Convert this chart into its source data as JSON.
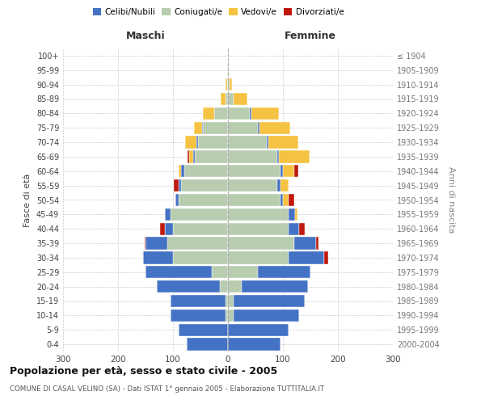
{
  "age_groups": [
    "0-4",
    "5-9",
    "10-14",
    "15-19",
    "20-24",
    "25-29",
    "30-34",
    "35-39",
    "40-44",
    "45-49",
    "50-54",
    "55-59",
    "60-64",
    "65-69",
    "70-74",
    "75-79",
    "80-84",
    "85-89",
    "90-94",
    "95-99",
    "100+"
  ],
  "birth_years": [
    "2000-2004",
    "1995-1999",
    "1990-1994",
    "1985-1989",
    "1980-1984",
    "1975-1979",
    "1970-1974",
    "1965-1969",
    "1960-1964",
    "1955-1959",
    "1950-1954",
    "1945-1949",
    "1940-1944",
    "1935-1939",
    "1930-1934",
    "1925-1929",
    "1920-1924",
    "1915-1919",
    "1910-1914",
    "1905-1909",
    "≤ 1904"
  ],
  "colors": {
    "celibi": "#4472C4",
    "coniugati": "#B8CCB0",
    "vedovi": "#F5C242",
    "divorziati": "#C0180C"
  },
  "males": {
    "celibi": [
      75,
      90,
      100,
      100,
      115,
      120,
      55,
      40,
      15,
      10,
      5,
      5,
      5,
      3,
      3,
      2,
      0,
      0,
      0,
      0,
      0
    ],
    "coniugati": [
      0,
      0,
      5,
      5,
      15,
      30,
      100,
      110,
      100,
      105,
      90,
      85,
      80,
      60,
      55,
      45,
      25,
      5,
      2,
      1,
      0
    ],
    "vedovi": [
      0,
      0,
      0,
      0,
      0,
      0,
      0,
      0,
      0,
      0,
      0,
      0,
      5,
      8,
      20,
      15,
      20,
      8,
      2,
      1,
      0
    ],
    "divorziati": [
      0,
      0,
      0,
      0,
      0,
      0,
      0,
      2,
      8,
      0,
      0,
      8,
      0,
      2,
      0,
      0,
      0,
      0,
      0,
      0,
      0
    ]
  },
  "females": {
    "celibi": [
      95,
      110,
      120,
      130,
      120,
      95,
      65,
      40,
      20,
      12,
      5,
      5,
      5,
      3,
      3,
      3,
      2,
      0,
      0,
      0,
      0
    ],
    "coniugati": [
      0,
      0,
      10,
      10,
      25,
      55,
      110,
      120,
      110,
      110,
      95,
      90,
      95,
      90,
      70,
      55,
      40,
      10,
      3,
      1,
      0
    ],
    "vedovi": [
      0,
      0,
      0,
      0,
      0,
      0,
      0,
      0,
      0,
      5,
      10,
      15,
      20,
      55,
      55,
      55,
      50,
      25,
      5,
      1,
      0
    ],
    "divorziati": [
      0,
      0,
      0,
      0,
      0,
      0,
      8,
      5,
      10,
      0,
      10,
      0,
      8,
      0,
      0,
      0,
      0,
      0,
      0,
      0,
      0
    ]
  },
  "title": "Popolazione per età, sesso e stato civile - 2005",
  "subtitle": "COMUNE DI CASAL VELINO (SA) - Dati ISTAT 1° gennaio 2005 - Elaborazione TUTTITALIA.IT",
  "xlabel_left": "Maschi",
  "xlabel_right": "Femmine",
  "ylabel_left": "Fasce di età",
  "ylabel_right": "Anni di nascita",
  "xlim": 300,
  "legend_labels": [
    "Celibi/Nubili",
    "Coniugati/e",
    "Vedovi/e",
    "Divorziati/e"
  ],
  "bg_color": "#FFFFFF",
  "grid_color": "#CCCCCC"
}
